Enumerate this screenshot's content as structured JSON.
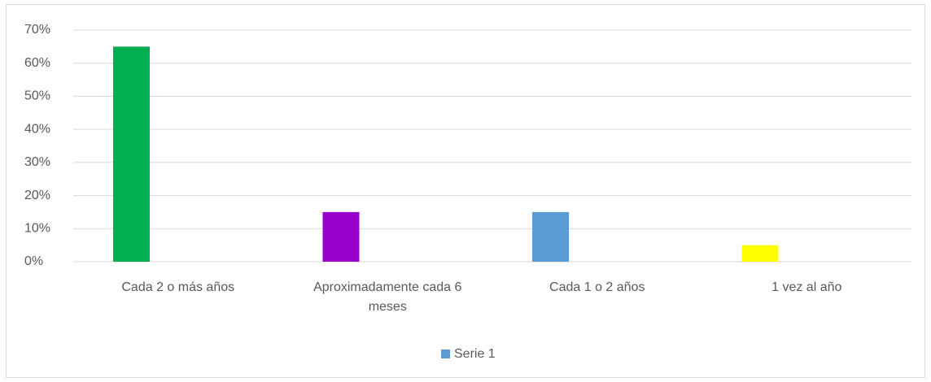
{
  "chart_data": {
    "type": "bar",
    "categories": [
      "Cada 2 o más años",
      "Aproximadamente cada 6 meses",
      "Cada 1 o 2 años",
      "1 vez al año"
    ],
    "series": [
      {
        "name": "Serie 1",
        "color": "#5b9bd5",
        "colors": [
          "#00b050",
          "#9900cc",
          "#5b9bd5",
          "#ffff00"
        ],
        "values": [
          65,
          15,
          15,
          5
        ]
      }
    ],
    "ylim": [
      0,
      70
    ],
    "yticks": [
      {
        "value": 0,
        "label": "0%"
      },
      {
        "value": 10,
        "label": "10%"
      },
      {
        "value": 20,
        "label": "20%"
      },
      {
        "value": 30,
        "label": "30%"
      },
      {
        "value": 40,
        "label": "40%"
      },
      {
        "value": 50,
        "label": "50%"
      },
      {
        "value": 60,
        "label": "60%"
      },
      {
        "value": 70,
        "label": "70%"
      }
    ],
    "grid": true,
    "legend": "bottom"
  }
}
